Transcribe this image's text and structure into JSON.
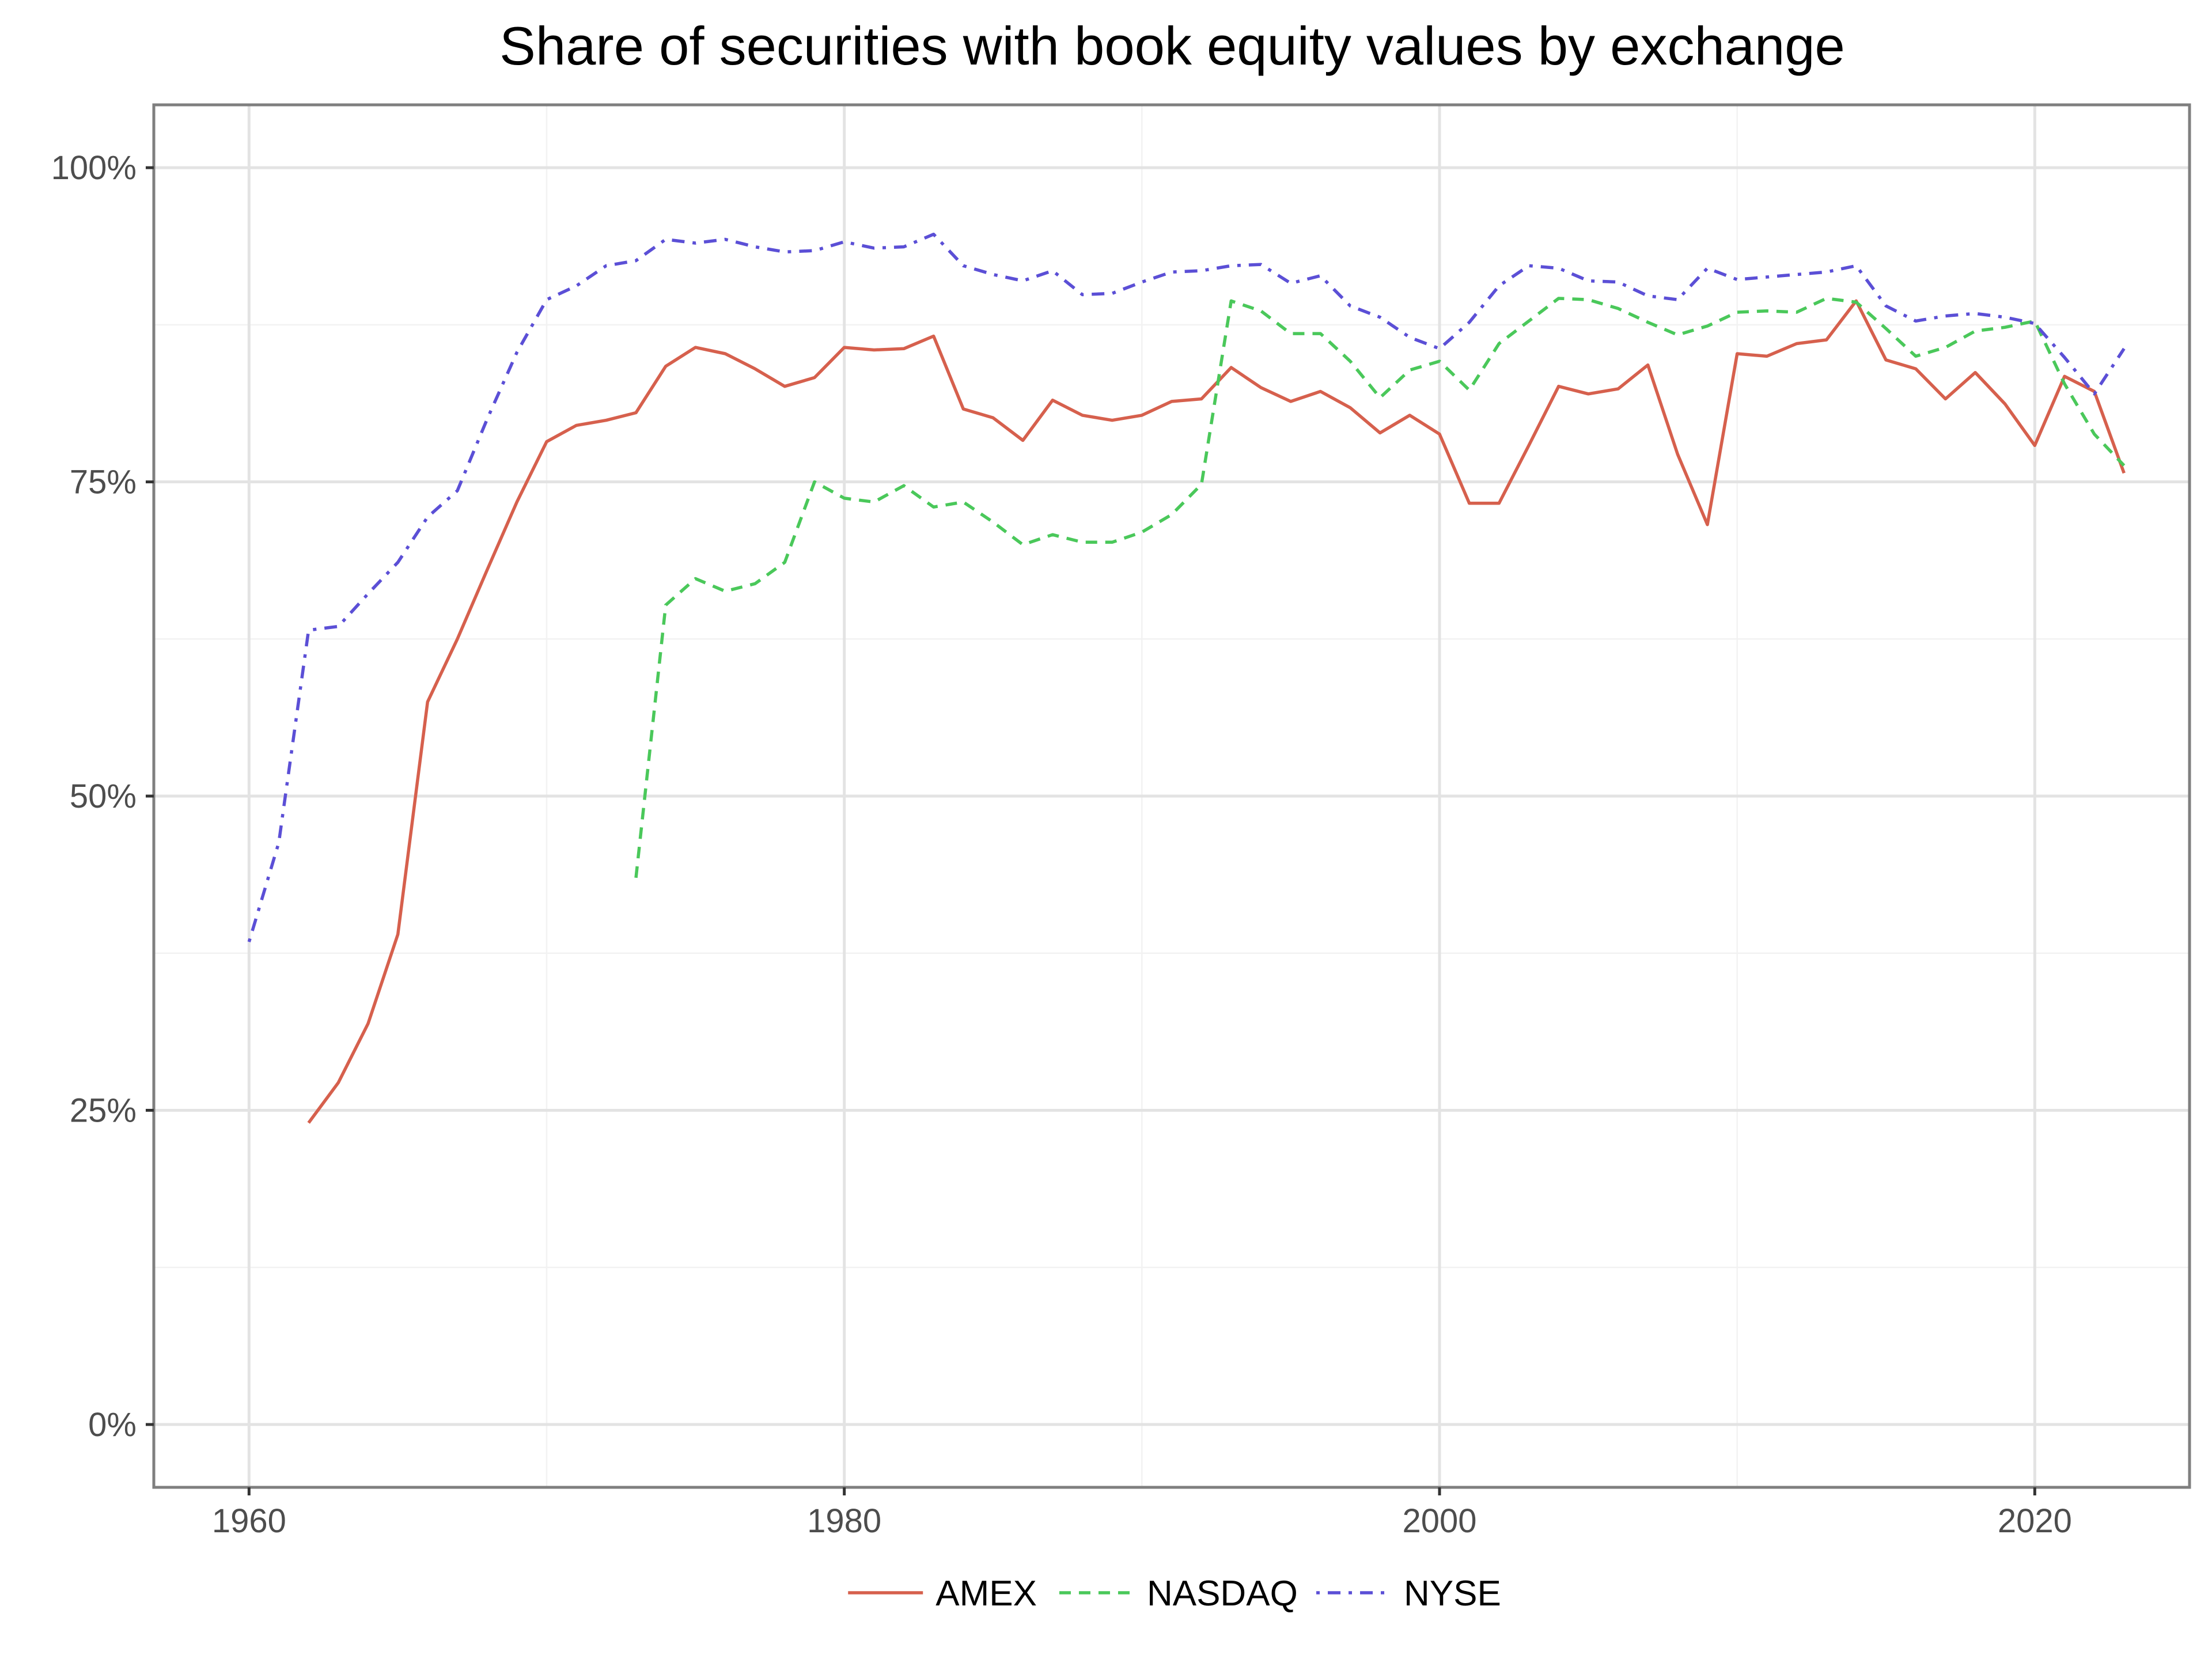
{
  "chart_data": {
    "type": "line",
    "title": "Share of securities with book equity values by exchange",
    "xlabel": "",
    "ylabel": "",
    "xlim": [
      1956.8,
      2025.2
    ],
    "ylim": [
      -0.05,
      1.05
    ],
    "x_ticks": [
      1960,
      1980,
      2000,
      2020
    ],
    "x_tick_labels": [
      "1960",
      "1980",
      "2000",
      "2020"
    ],
    "y_ticks": [
      0,
      0.25,
      0.5,
      0.75,
      1.0
    ],
    "y_tick_labels": [
      "0%",
      "25%",
      "50%",
      "75%",
      "100%"
    ],
    "grid": true,
    "legend_position": "bottom",
    "series": [
      {
        "name": "AMEX",
        "color": "#d6604d",
        "dash": "solid",
        "x": [
          1962,
          1963,
          1964,
          1965,
          1966,
          1967,
          1968,
          1969,
          1970,
          1971,
          1972,
          1973,
          1974,
          1975,
          1976,
          1977,
          1978,
          1979,
          1980,
          1981,
          1982,
          1983,
          1984,
          1985,
          1986,
          1987,
          1988,
          1989,
          1990,
          1991,
          1992,
          1993,
          1994,
          1995,
          1996,
          1997,
          1998,
          1999,
          2000,
          2001,
          2002,
          2003,
          2004,
          2005,
          2006,
          2007,
          2008,
          2009,
          2010,
          2011,
          2012,
          2013,
          2014,
          2015,
          2016,
          2017,
          2018,
          2019,
          2020,
          2021,
          2022,
          2023
        ],
        "y": [
          0.24,
          0.272,
          0.319,
          0.39,
          0.575,
          0.625,
          0.68,
          0.734,
          0.782,
          0.795,
          0.799,
          0.805,
          0.842,
          0.857,
          0.852,
          0.84,
          0.826,
          0.833,
          0.857,
          0.855,
          0.856,
          0.866,
          0.808,
          0.801,
          0.783,
          0.815,
          0.803,
          0.799,
          0.803,
          0.814,
          0.816,
          0.841,
          0.825,
          0.814,
          0.822,
          0.809,
          0.789,
          0.803,
          0.788,
          0.733,
          0.733,
          0.779,
          0.826,
          0.82,
          0.824,
          0.843,
          0.772,
          0.716,
          0.852,
          0.85,
          0.86,
          0.863,
          0.894,
          0.847,
          0.84,
          0.816,
          0.837,
          0.812,
          0.779,
          0.834,
          0.822,
          0.757
        ]
      },
      {
        "name": "NASDAQ",
        "color": "#4ac85a",
        "dash": "dashed",
        "x": [
          1973,
          1974,
          1975,
          1976,
          1977,
          1978,
          1979,
          1980,
          1981,
          1982,
          1983,
          1984,
          1985,
          1986,
          1987,
          1988,
          1989,
          1990,
          1991,
          1992,
          1993,
          1994,
          1995,
          1996,
          1997,
          1998,
          1999,
          2000,
          2001,
          2002,
          2003,
          2004,
          2005,
          2006,
          2007,
          2008,
          2009,
          2010,
          2011,
          2012,
          2013,
          2014,
          2015,
          2016,
          2017,
          2018,
          2019,
          2020,
          2021,
          2022,
          2023
        ],
        "y": [
          0.435,
          0.652,
          0.673,
          0.663,
          0.669,
          0.686,
          0.75,
          0.737,
          0.734,
          0.747,
          0.73,
          0.734,
          0.718,
          0.7,
          0.708,
          0.702,
          0.702,
          0.71,
          0.724,
          0.748,
          0.894,
          0.886,
          0.868,
          0.868,
          0.846,
          0.817,
          0.839,
          0.846,
          0.823,
          0.86,
          0.878,
          0.896,
          0.895,
          0.888,
          0.877,
          0.867,
          0.874,
          0.885,
          0.886,
          0.885,
          0.896,
          0.893,
          0.872,
          0.85,
          0.857,
          0.87,
          0.873,
          0.878,
          0.828,
          0.788,
          0.763
        ]
      },
      {
        "name": "NYSE",
        "color": "#5b4fd6",
        "dash": "dotdash",
        "x": [
          1960,
          1961,
          1962,
          1963,
          1964,
          1965,
          1966,
          1967,
          1968,
          1969,
          1970,
          1971,
          1972,
          1973,
          1974,
          1975,
          1976,
          1977,
          1978,
          1979,
          1980,
          1981,
          1982,
          1983,
          1984,
          1985,
          1986,
          1987,
          1988,
          1989,
          1990,
          1991,
          1992,
          1993,
          1994,
          1995,
          1996,
          1997,
          1998,
          1999,
          2000,
          2001,
          2002,
          2003,
          2004,
          2005,
          2006,
          2007,
          2008,
          2009,
          2010,
          2011,
          2012,
          2013,
          2014,
          2015,
          2016,
          2017,
          2018,
          2019,
          2020,
          2021,
          2022,
          2023
        ],
        "y": [
          0.384,
          0.463,
          0.632,
          0.635,
          0.661,
          0.686,
          0.722,
          0.743,
          0.8,
          0.853,
          0.895,
          0.906,
          0.922,
          0.926,
          0.943,
          0.94,
          0.943,
          0.937,
          0.933,
          0.934,
          0.941,
          0.936,
          0.937,
          0.947,
          0.922,
          0.915,
          0.91,
          0.918,
          0.899,
          0.9,
          0.909,
          0.917,
          0.918,
          0.922,
          0.923,
          0.908,
          0.914,
          0.89,
          0.881,
          0.865,
          0.856,
          0.877,
          0.906,
          0.922,
          0.92,
          0.91,
          0.909,
          0.898,
          0.895,
          0.92,
          0.911,
          0.913,
          0.915,
          0.917,
          0.922,
          0.89,
          0.878,
          0.882,
          0.884,
          0.881,
          0.876,
          0.849,
          0.82,
          0.856
        ]
      }
    ]
  }
}
